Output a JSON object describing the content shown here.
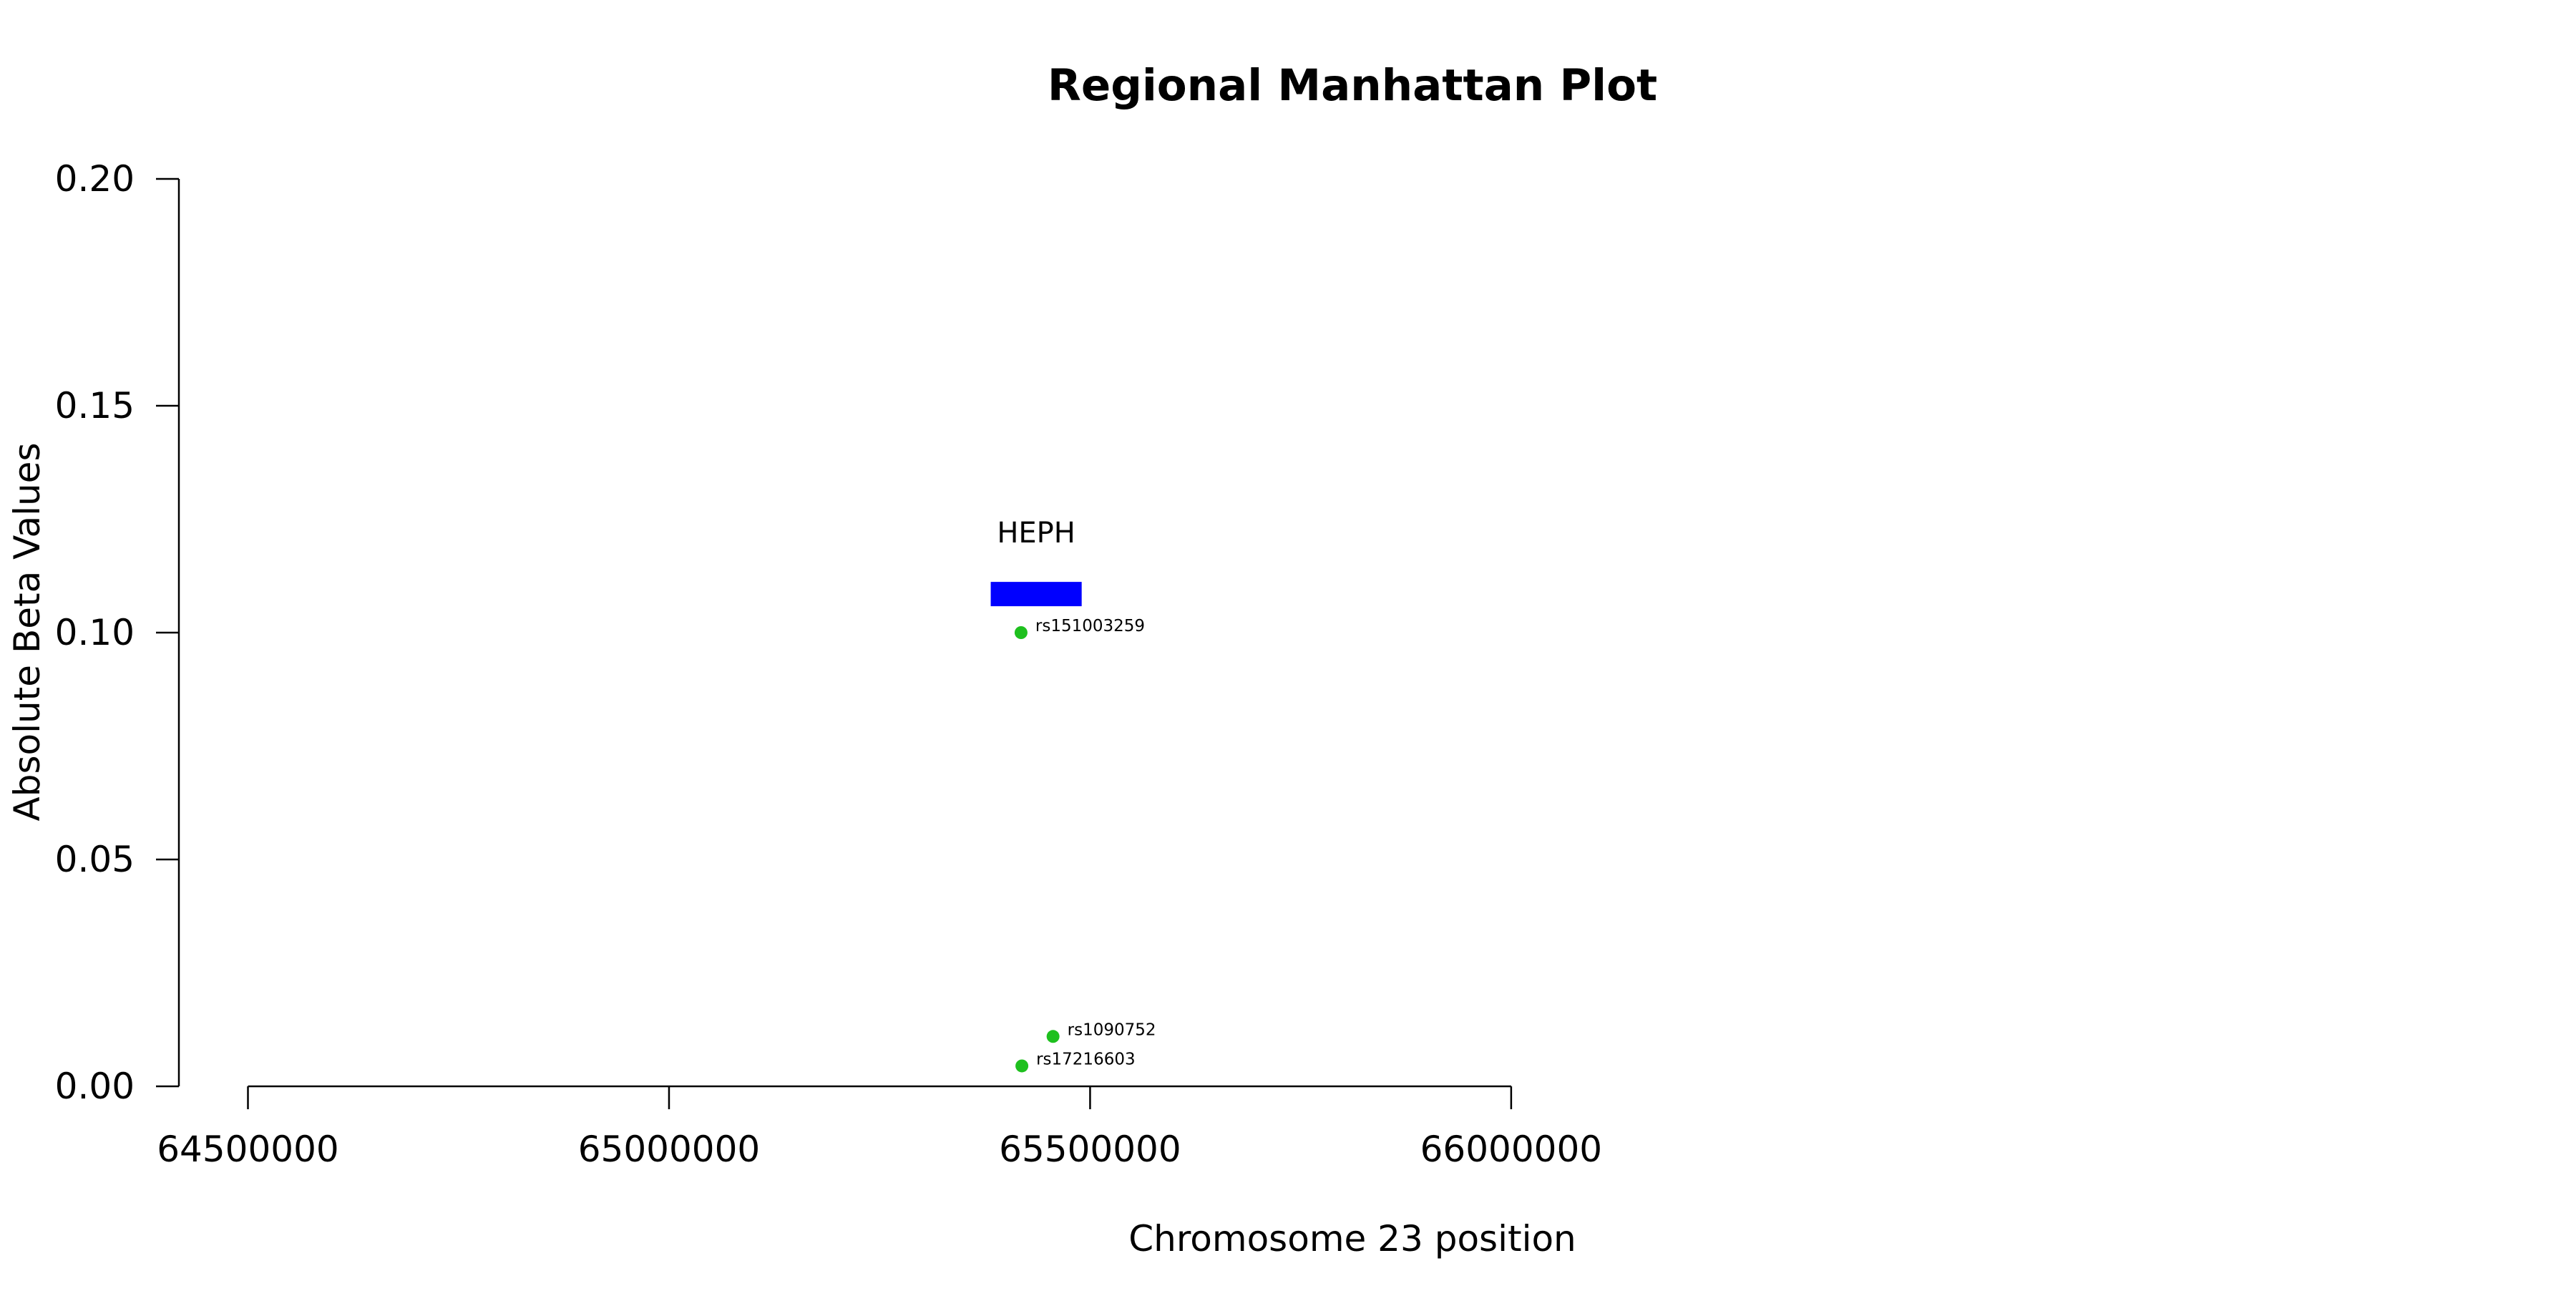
{
  "chart_data": {
    "type": "scatter",
    "title": "Regional Manhattan Plot",
    "xlabel": "Chromosome 23 position",
    "ylabel": "Absolute Beta Values",
    "xlim": [
      64418000,
      66580000
    ],
    "ylim": [
      0,
      0.2
    ],
    "x_ticks": [
      64500000,
      65000000,
      65500000,
      66000000
    ],
    "x_tick_labels": [
      "64500000",
      "65000000",
      "65500000",
      "66000000"
    ],
    "y_ticks": [
      0,
      0.05,
      0.1,
      0.15,
      0.2
    ],
    "y_tick_labels": [
      "0.00",
      "0.05",
      "0.10",
      "0.15",
      "0.20"
    ],
    "grid": false,
    "point_color": "#1ec01e",
    "points": [
      {
        "label": "rs151003259",
        "x": 65418000,
        "y": 0.1
      },
      {
        "label": "rs1090752",
        "x": 65456000,
        "y": 0.011
      },
      {
        "label": "rs17216603",
        "x": 65419000,
        "y": 0.0045
      }
    ],
    "genes": [
      {
        "name": "HEPH",
        "start": 65382000,
        "end": 65490000,
        "y": 0.1085,
        "color": "#0000ff"
      }
    ]
  }
}
